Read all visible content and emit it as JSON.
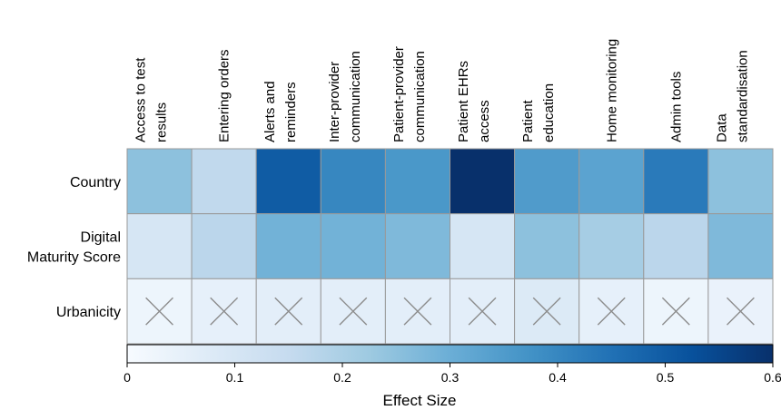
{
  "chart_data": {
    "type": "heatmap",
    "title": "",
    "columns": [
      "Access to test results",
      "Entering orders",
      "Alerts and reminders",
      "Inter-provider communication",
      "Patient-provider communication",
      "Patient EHRs access",
      "Patient education",
      "Home monitoring",
      "Admin tools",
      "Data standardisation"
    ],
    "column_label_lines": [
      [
        "Access to test",
        "results"
      ],
      [
        "Entering orders"
      ],
      [
        "Alerts and",
        "reminders"
      ],
      [
        "Inter-provider",
        "communication"
      ],
      [
        "Patient-provider",
        "communication"
      ],
      [
        "Patient EHRs",
        "access"
      ],
      [
        "Patient",
        "education"
      ],
      [
        "Home monitoring"
      ],
      [
        "Admin tools"
      ],
      [
        "Data",
        "standardisation"
      ]
    ],
    "rows": [
      "Country",
      "Digital Maturity Score",
      "Urbanicity"
    ],
    "row_label_lines": [
      [
        "Country"
      ],
      [
        "Digital",
        "Maturity Score"
      ],
      [
        "Urbanicity"
      ]
    ],
    "values": [
      [
        0.25,
        0.16,
        0.5,
        0.4,
        0.36,
        0.6,
        0.35,
        0.33,
        0.43,
        0.25
      ],
      [
        0.1,
        0.17,
        0.29,
        0.29,
        0.27,
        0.1,
        0.25,
        0.21,
        0.17,
        0.27
      ],
      [
        0.03,
        0.05,
        0.06,
        0.06,
        0.06,
        0.06,
        0.08,
        0.05,
        0.03,
        0.04
      ]
    ],
    "crossed_row": "Urbanicity",
    "colorbar": {
      "label": "Effect Size",
      "min": 0,
      "max": 0.6,
      "ticks": [
        "0",
        "0.1",
        "0.2",
        "0.3",
        "0.4",
        "0.5",
        "0.6"
      ],
      "colors": [
        "#f7fbff",
        "#deebf7",
        "#c6dbef",
        "#9ecae1",
        "#6baed6",
        "#4292c6",
        "#2171b5",
        "#08519c",
        "#08306b"
      ]
    },
    "grid_color": "#999999"
  }
}
